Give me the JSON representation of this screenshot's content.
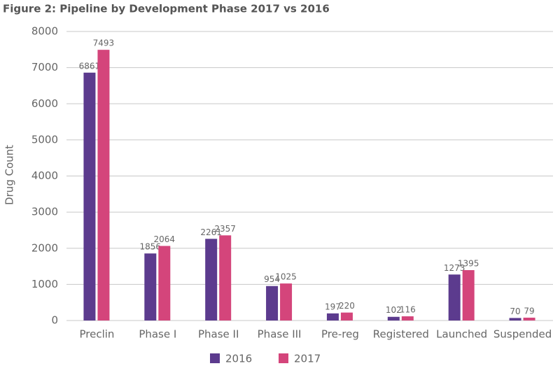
{
  "chart_data": {
    "type": "bar",
    "title": "Figure 2: Pipeline by Development Phase 2017 vs 2016",
    "y_label": "Drug Count",
    "categories": [
      "Preclin",
      "Phase I",
      "Phase II",
      "Phase III",
      "Pre-reg",
      "Registered",
      "Launched",
      "Suspended"
    ],
    "series": [
      {
        "name": "2016",
        "color": "#5c3b8e",
        "values": [
          6861,
          1856,
          2261,
          954,
          197,
          102,
          1273,
          70
        ]
      },
      {
        "name": "2017",
        "color": "#d4457b",
        "values": [
          7493,
          2064,
          2357,
          1025,
          220,
          116,
          1395,
          79
        ]
      }
    ],
    "ylim": [
      0,
      8000
    ],
    "yticks": [
      0,
      1000,
      2000,
      3000,
      4000,
      5000,
      6000,
      7000,
      8000
    ],
    "grid": true
  }
}
